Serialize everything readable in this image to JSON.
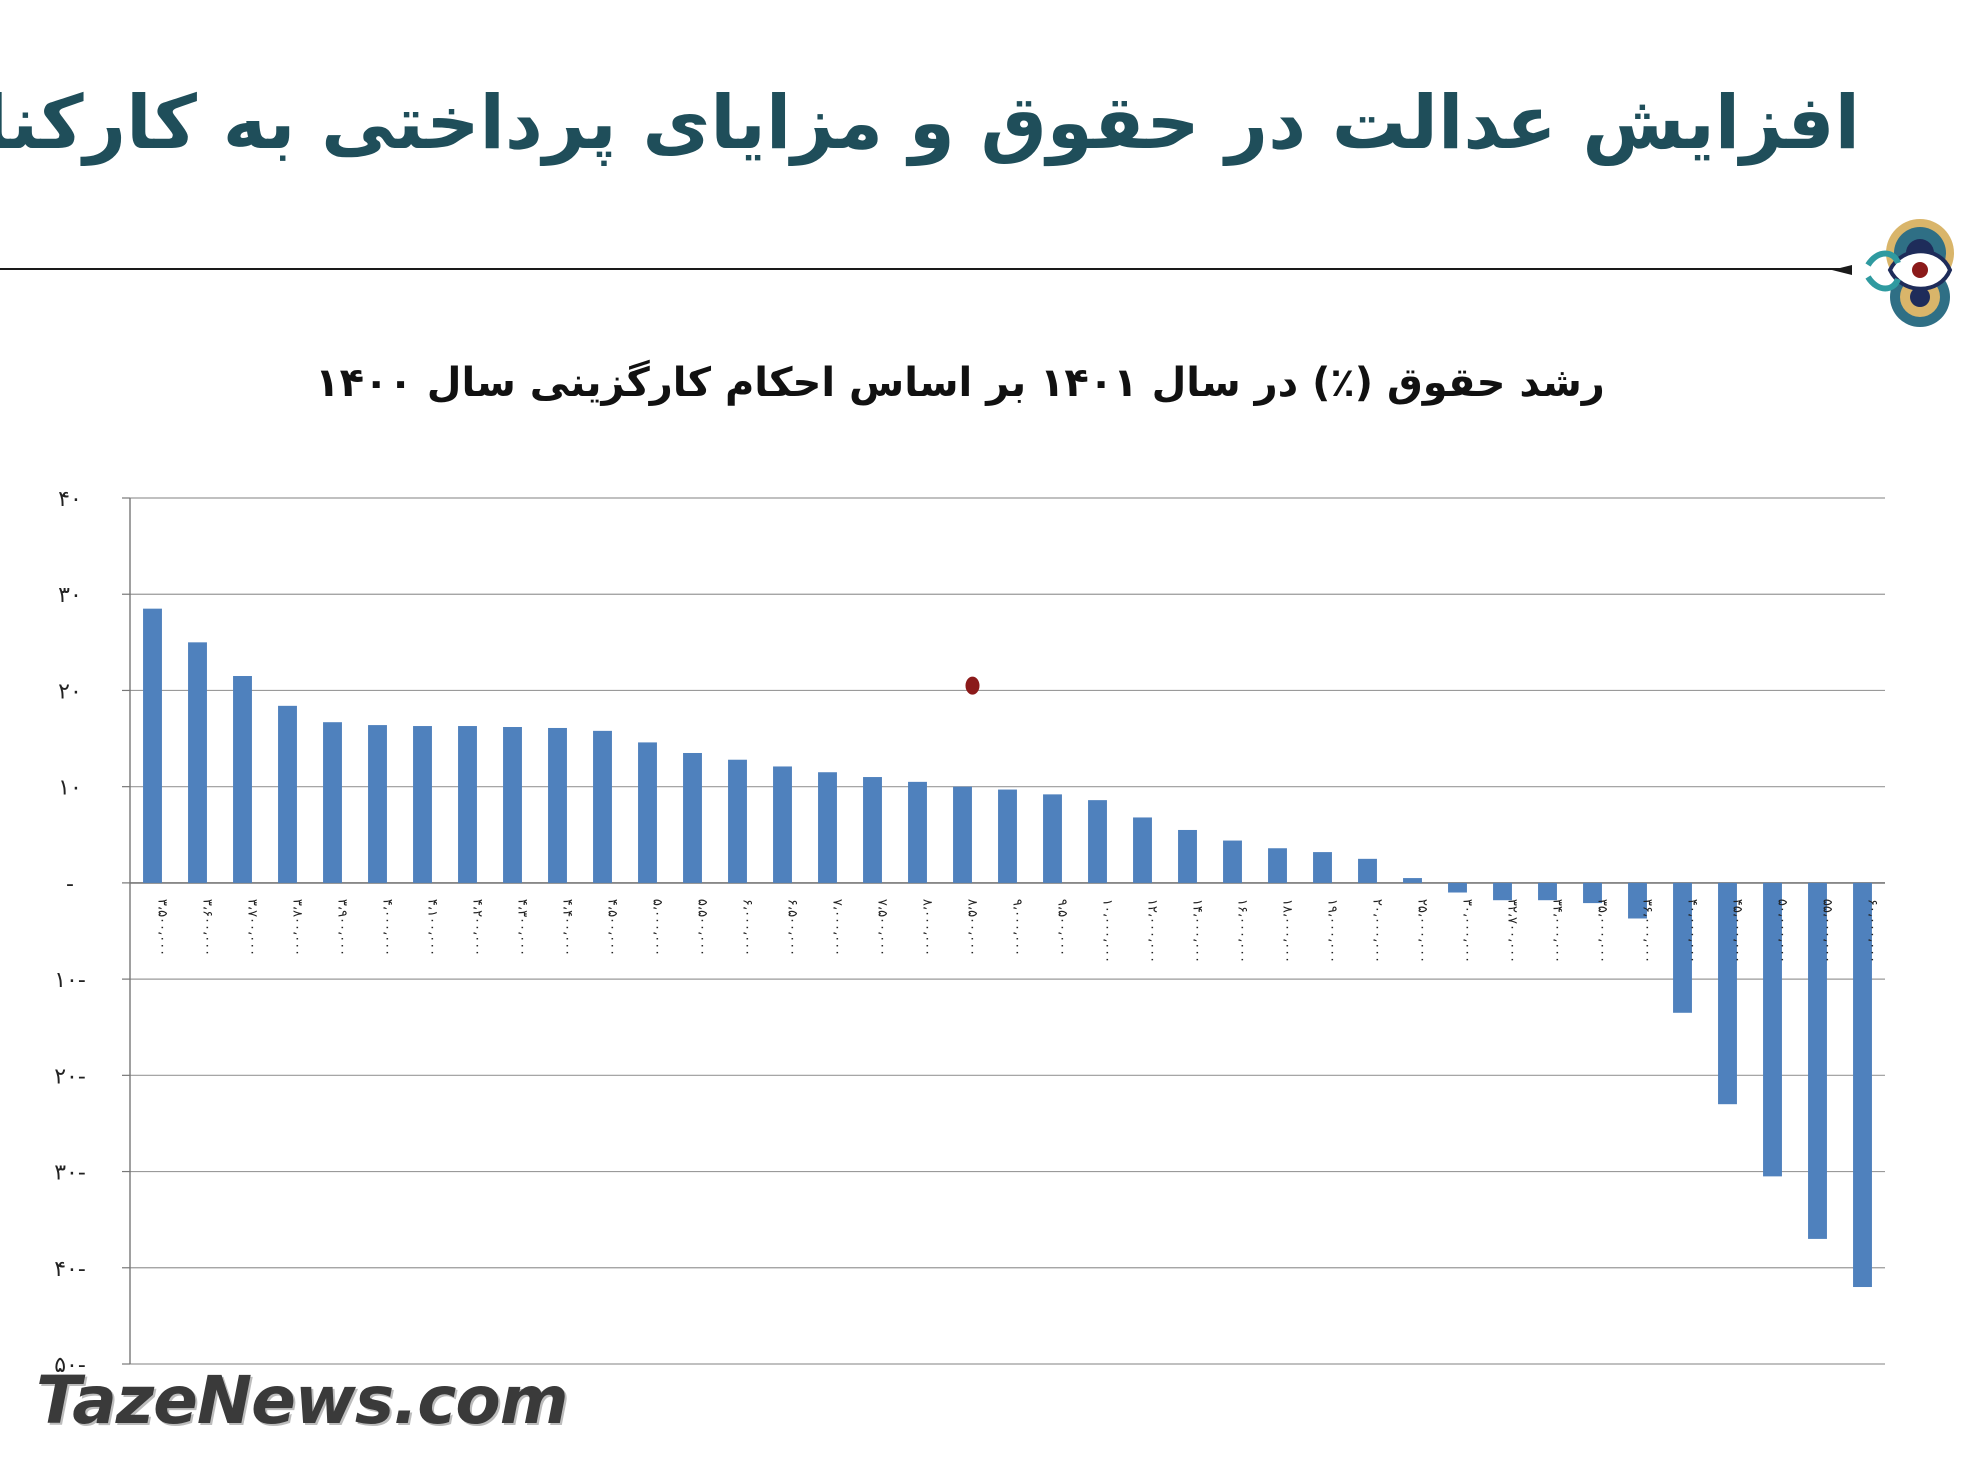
{
  "slide": {
    "title": "افزایش عدالت در حقوق و مزایای پرداختی  به کارکنان",
    "watermark": "TazeNews.com"
  },
  "chart_data": {
    "type": "bar",
    "title": "رشد حقوق (٪) در سال  ۱۴۰۱ بر اساس احکام کارگزینی سال  ۱۴۰۰",
    "xlabel": "",
    "ylabel": "",
    "ylim": [
      -50,
      40
    ],
    "yticks": [
      40,
      30,
      20,
      10,
      0,
      -10,
      -20,
      -30,
      -40,
      -50
    ],
    "ytick_labels": [
      "۴۰",
      "۳۰",
      "۲۰",
      "۱۰",
      "-",
      "۱۰-",
      "۲۰-",
      "۳۰-",
      "۴۰-",
      "۵۰-"
    ],
    "grid": true,
    "legend": "none",
    "bar_color": "#4f81bd",
    "marker_color": "#8b1a1a",
    "categories": [
      "۳،۵۰۰،۰۰۰",
      "۳،۶۰۰،۰۰۰",
      "۳،۷۰۰،۰۰۰",
      "۳،۸۰۰،۰۰۰",
      "۳،۹۰۰،۰۰۰",
      "۴،۰۰۰،۰۰۰",
      "۴،۱۰۰،۰۰۰",
      "۴،۲۰۰،۰۰۰",
      "۴،۳۰۰،۰۰۰",
      "۴،۴۰۰،۰۰۰",
      "۴،۵۰۰،۰۰۰",
      "۵،۰۰۰،۰۰۰",
      "۵،۵۰۰،۰۰۰",
      "۶،۰۰۰،۰۰۰",
      "۶،۵۰۰،۰۰۰",
      "۷،۰۰۰،۰۰۰",
      "۷،۵۰۰،۰۰۰",
      "۸،۰۰۰،۰۰۰",
      "۸،۵۰۰،۰۰۰",
      "۹،۰۰۰،۰۰۰",
      "۹،۵۰۰،۰۰۰",
      "۱۰،۰۰۰،۰۰۰",
      "۱۲،۰۰۰،۰۰۰",
      "۱۴،۰۰۰،۰۰۰",
      "۱۶،۰۰۰،۰۰۰",
      "۱۸،۰۰۰،۰۰۰",
      "۱۹،۰۰۰،۰۰۰",
      "۲۰،۰۰۰،۰۰۰",
      "۲۵،۰۰۰،۰۰۰",
      "۳۰،۰۰۰،۰۰۰",
      "۳۲،۷۰۰،۰۰۰",
      "۳۴،۰۰۰،۰۰۰",
      "۳۵،۰۰۰،۰۰۰",
      "۳۶،۰۰۰،۰۰۰",
      "۴۰،۰۰۰،۰۰۰",
      "۴۵،۰۰۰،۰۰۰",
      "۵۰،۰۰۰،۰۰۰",
      "۵۵،۰۰۰،۰۰۰",
      "۶۰،۰۰۰،۰۰۰"
    ],
    "values": [
      28.5,
      25,
      21.5,
      18.4,
      16.7,
      16.4,
      16.3,
      16.3,
      16.2,
      16.1,
      15.8,
      14.6,
      13.5,
      12.8,
      12.1,
      11.5,
      11,
      10.5,
      10,
      9.7,
      9.2,
      8.6,
      6.8,
      5.5,
      4.4,
      3.6,
      3.2,
      2.5,
      0.5,
      -1,
      -1.8,
      -1.8,
      -2.1,
      -3.7,
      -13.5,
      -23,
      -30.5,
      -37,
      -42
    ],
    "marker": {
      "x_index": 18,
      "y": 20.5
    }
  }
}
